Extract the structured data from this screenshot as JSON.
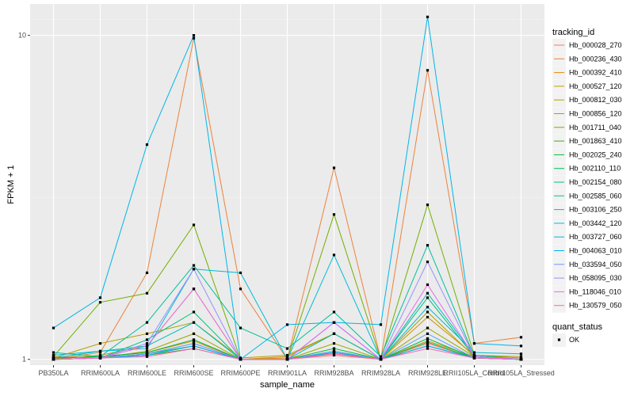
{
  "chart_data": {
    "type": "line",
    "xlabel": "sample_name",
    "ylabel": "FPKM + 1",
    "y_scale": "log10",
    "ylim": [
      0.96,
      12.5
    ],
    "y_ticks": [
      1,
      10
    ],
    "y_tick_labels": [
      "1",
      "10"
    ],
    "categories": [
      "PB350LA",
      "RRIM600LA",
      "RRIM600LE",
      "RRIM600SE",
      "RRIM600PE",
      "RRIM901LA",
      "RRIM928BA",
      "RRIM928LA",
      "RRIM928LE",
      "RRII105LA_Control",
      "RRII105LA_Stressed"
    ],
    "grid": true,
    "legend_position": "right",
    "legend_title": "tracking_id",
    "series": [
      {
        "name": "Hb_000028_270",
        "color": "#F8766D",
        "values": [
          1.02,
          1.01,
          1.04,
          1.12,
          1.0,
          1.0,
          1.03,
          1.0,
          1.12,
          1.01,
          1.0
        ]
      },
      {
        "name": "Hb_000236_430",
        "color": "#EC823C",
        "values": [
          1.0,
          1.05,
          1.85,
          9.8,
          1.65,
          1.0,
          3.9,
          1.0,
          7.8,
          1.12,
          1.17
        ]
      },
      {
        "name": "Hb_000392_410",
        "color": "#DD8D00",
        "values": [
          1.01,
          1.02,
          1.05,
          1.14,
          1.0,
          1.01,
          1.04,
          1.0,
          1.14,
          1.02,
          1.0
        ]
      },
      {
        "name": "Hb_000527_120",
        "color": "#CA9700",
        "values": [
          1.0,
          1.03,
          1.1,
          1.65,
          1.0,
          1.02,
          1.2,
          1.0,
          1.35,
          1.03,
          1.02
        ]
      },
      {
        "name": "Hb_000812_030",
        "color": "#B3A000",
        "values": [
          1.01,
          1.12,
          1.2,
          1.3,
          1.01,
          1.03,
          1.2,
          1.0,
          1.4,
          1.02,
          1.0
        ]
      },
      {
        "name": "Hb_000856_120",
        "color": "#97A900",
        "values": [
          1.0,
          1.01,
          1.06,
          1.2,
          1.0,
          1.0,
          1.12,
          1.0,
          1.25,
          1.02,
          1.0
        ]
      },
      {
        "name": "Hb_001711_040",
        "color": "#71B000",
        "values": [
          1.02,
          1.5,
          1.6,
          2.6,
          1.0,
          1.0,
          2.8,
          1.0,
          3.0,
          1.03,
          1.01
        ]
      },
      {
        "name": "Hb_001863_410",
        "color": "#2FB600",
        "values": [
          1.0,
          1.01,
          1.03,
          1.08,
          1.0,
          1.0,
          1.05,
          1.0,
          1.1,
          1.01,
          1.0
        ]
      },
      {
        "name": "Hb_002025_240",
        "color": "#00BA38",
        "values": [
          1.01,
          1.02,
          1.05,
          1.15,
          1.0,
          1.0,
          1.08,
          1.0,
          1.16,
          1.01,
          1.0
        ]
      },
      {
        "name": "Hb_002110_110",
        "color": "#00BD5C",
        "values": [
          1.0,
          1.01,
          1.04,
          1.1,
          1.0,
          1.0,
          1.06,
          1.0,
          1.13,
          1.01,
          1.0
        ]
      },
      {
        "name": "Hb_002154_080",
        "color": "#00C07B",
        "values": [
          1.0,
          1.01,
          1.15,
          1.4,
          1.0,
          1.0,
          1.3,
          1.0,
          1.55,
          1.02,
          1.0
        ]
      },
      {
        "name": "Hb_002585_060",
        "color": "#00C19A",
        "values": [
          1.05,
          1.02,
          1.3,
          1.95,
          1.25,
          1.08,
          1.4,
          1.02,
          2.25,
          1.02,
          1.0
        ]
      },
      {
        "name": "Hb_003106_250",
        "color": "#00BFB7",
        "values": [
          1.01,
          1.06,
          1.1,
          1.3,
          1.0,
          1.0,
          1.2,
          1.0,
          1.6,
          1.03,
          1.0
        ]
      },
      {
        "name": "Hb_003442_120",
        "color": "#00BCD1",
        "values": [
          1.03,
          1.06,
          1.08,
          1.9,
          1.85,
          1.0,
          2.1,
          1.0,
          1.45,
          1.05,
          1.04
        ]
      },
      {
        "name": "Hb_003727_060",
        "color": "#00B5E7",
        "values": [
          1.25,
          1.55,
          4.6,
          10.0,
          1.0,
          1.28,
          1.3,
          1.28,
          11.4,
          1.12,
          1.1
        ]
      },
      {
        "name": "Hb_004063_010",
        "color": "#00ABFA",
        "values": [
          1.0,
          1.01,
          1.03,
          1.1,
          1.0,
          1.0,
          1.05,
          1.0,
          1.1,
          1.01,
          1.0
        ]
      },
      {
        "name": "Hb_033594_050",
        "color": "#619CFF",
        "values": [
          1.0,
          1.01,
          1.04,
          1.12,
          1.0,
          1.0,
          1.06,
          1.0,
          1.2,
          1.01,
          1.0
        ]
      },
      {
        "name": "Hb_058095_030",
        "color": "#9590FF",
        "values": [
          1.0,
          1.01,
          1.12,
          1.9,
          1.0,
          1.0,
          1.3,
          1.0,
          2.0,
          1.02,
          1.0
        ]
      },
      {
        "name": "Hb_118046_010",
        "color": "#E76BF3",
        "values": [
          1.0,
          1.01,
          1.1,
          1.65,
          1.0,
          1.0,
          1.3,
          1.0,
          1.7,
          1.02,
          1.0
        ]
      },
      {
        "name": "Hb_130579_050",
        "color": "#FF62BC",
        "values": [
          1.0,
          1.01,
          1.02,
          1.08,
          1.0,
          1.0,
          1.04,
          1.0,
          1.08,
          1.01,
          1.0
        ]
      }
    ],
    "shape_legend": {
      "title": "quant_status",
      "entries": [
        {
          "label": "OK",
          "marker": "square"
        }
      ]
    }
  },
  "colors": {
    "panel_background": "#EBEBEB",
    "grid_major": "#FFFFFF",
    "point": "#000000"
  }
}
